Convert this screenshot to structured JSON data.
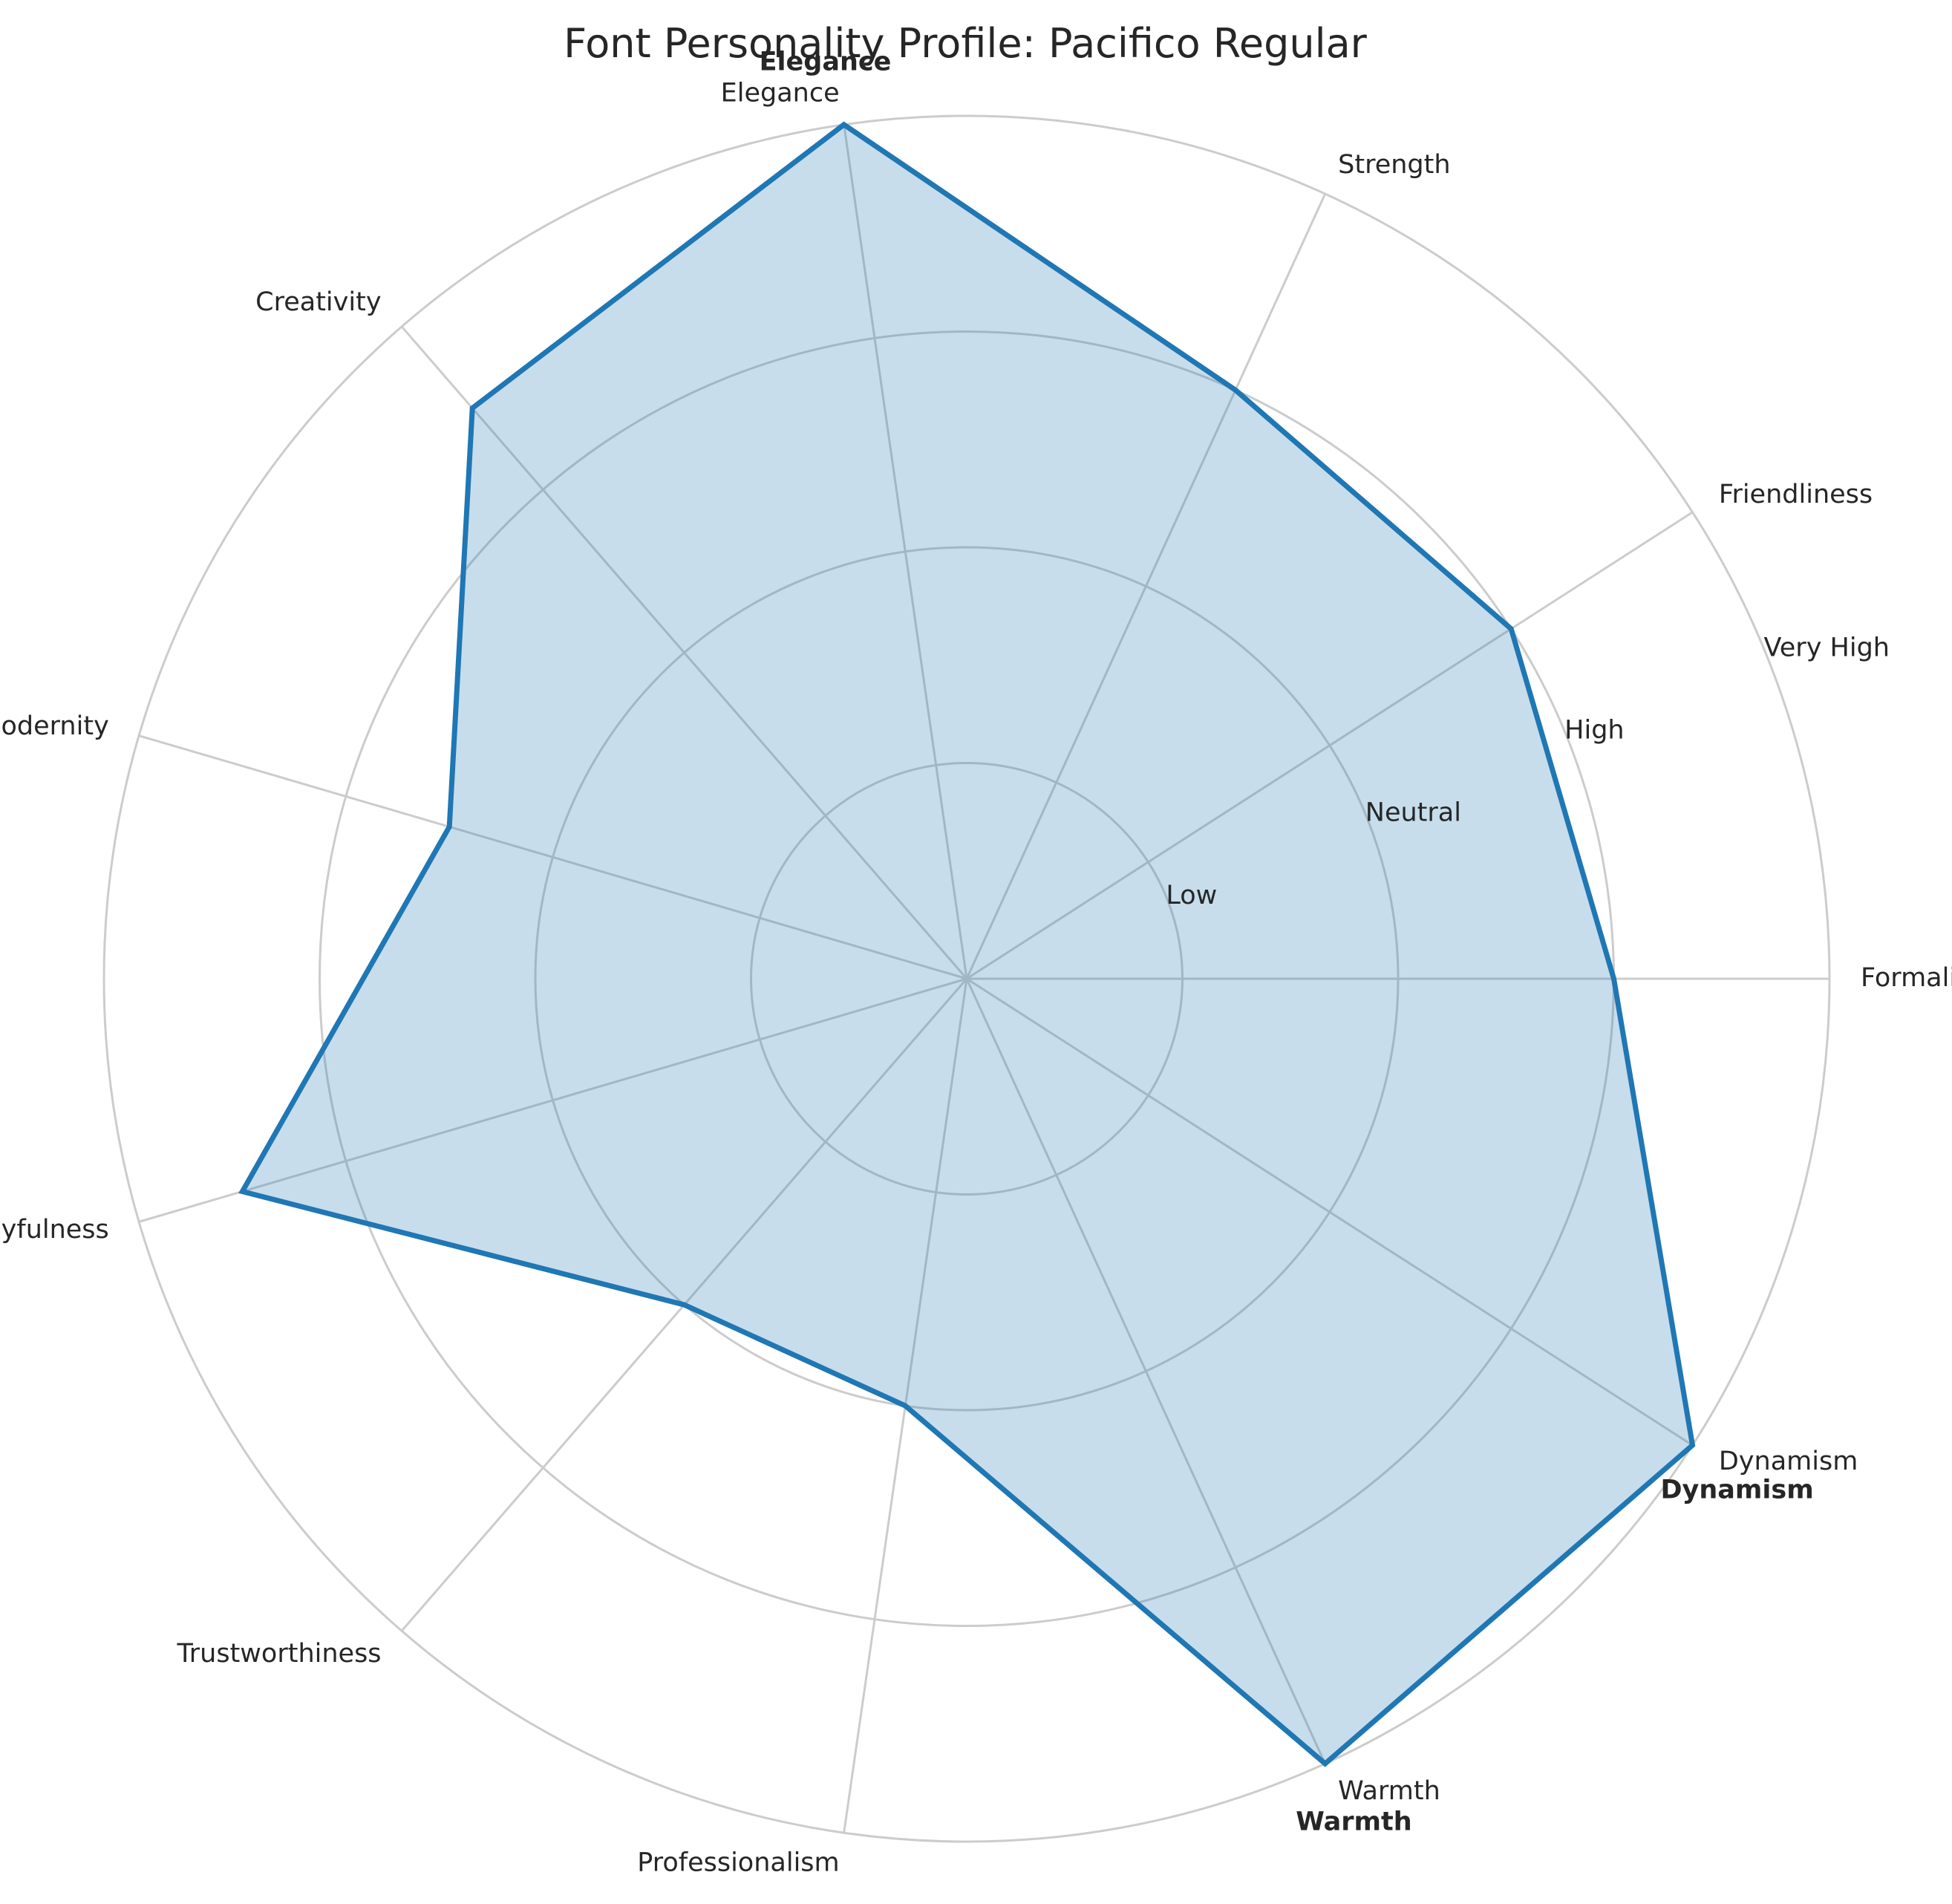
{
  "chart_data": {
    "type": "radar",
    "title": "Font Personality Profile: Pacifico Regular",
    "categories": [
      "Formality",
      "Friendliness",
      "Strength",
      "Elegance",
      "Creativity",
      "Modernity",
      "Playfulness",
      "Trustworthiness",
      "Professionalism",
      "Warmth",
      "Dynamism"
    ],
    "series": [
      {
        "values": [
          3,
          3,
          3,
          4,
          3.5,
          2.5,
          3.5,
          2,
          2,
          4,
          4
        ]
      }
    ],
    "rlim": [
      0,
      4
    ],
    "r_ticks": [
      1,
      2,
      3,
      4
    ],
    "r_tick_labels": [
      "Low",
      "Neutral",
      "High",
      "Very High"
    ],
    "highlighted_categories": [
      "Elegance",
      "Warmth",
      "Dynamism"
    ],
    "grid": true,
    "colors": {
      "series": "#1f77b4",
      "grid": "#cccccc",
      "text": "#262626"
    }
  }
}
